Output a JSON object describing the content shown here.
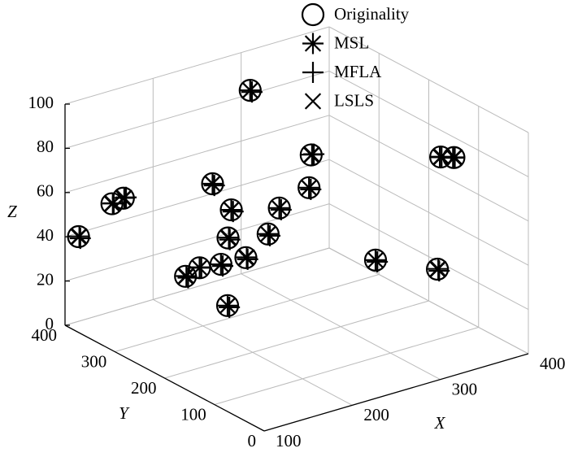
{
  "chart_data": {
    "type": "scatter3d",
    "xlabel": "X",
    "ylabel": "Y",
    "zlabel": "Z",
    "xlim": [
      100,
      400
    ],
    "ylim": [
      0,
      400
    ],
    "zlim": [
      0,
      100
    ],
    "xticks": [
      100,
      200,
      300,
      400
    ],
    "yticks": [
      0,
      100,
      200,
      300,
      400
    ],
    "zticks": [
      0,
      20,
      40,
      60,
      80,
      100
    ],
    "grid": true,
    "legend": "top",
    "series": [
      {
        "name": "Originality",
        "marker": "circle",
        "color": "#000000",
        "x": [
          282,
          323,
          357,
          372,
          264,
          211,
          125,
          138,
          204,
          202,
          104,
          172,
          161,
          152,
          168,
          164,
          164,
          283,
          325,
          115
        ],
        "y": [
          350,
          300,
          100,
          100,
          200,
          300,
          350,
          350,
          250,
          150,
          380,
          200,
          100,
          250,
          250,
          200,
          150,
          100,
          50,
          100
        ],
        "z": [
          91,
          63,
          82,
          80,
          67,
          63,
          58,
          59,
          58,
          71,
          42,
          55,
          70,
          34,
          36,
          44,
          53,
          44,
          41,
          43
        ]
      },
      {
        "name": "MSL",
        "marker": "asterisk",
        "color": "#000000",
        "x": [
          282,
          324,
          358,
          373,
          264,
          211,
          126,
          139,
          204,
          202,
          105,
          173,
          161,
          153,
          168,
          164,
          165,
          283,
          326,
          115
        ],
        "y": [
          350,
          300,
          100,
          100,
          200,
          300,
          350,
          350,
          250,
          150,
          380,
          200,
          100,
          250,
          250,
          200,
          150,
          100,
          50,
          100
        ],
        "z": [
          91,
          63,
          82,
          80,
          67,
          63,
          58,
          59,
          58,
          71,
          42,
          55,
          70,
          34,
          36,
          44,
          53,
          44,
          41,
          43
        ]
      },
      {
        "name": "MFLA",
        "marker": "plus",
        "color": "#000000",
        "x": [
          284,
          326,
          356,
          371,
          266,
          213,
          127,
          141,
          206,
          204,
          106,
          174,
          163,
          155,
          170,
          166,
          166,
          285,
          327,
          117
        ],
        "y": [
          350,
          300,
          100,
          100,
          200,
          300,
          350,
          350,
          250,
          150,
          380,
          200,
          100,
          250,
          250,
          200,
          150,
          100,
          50,
          100
        ],
        "z": [
          90,
          63,
          82,
          80,
          66,
          62,
          58,
          59,
          57,
          70,
          41,
          54,
          69,
          33,
          36,
          43,
          52,
          43,
          40,
          42
        ]
      },
      {
        "name": "LSLS",
        "marker": "x",
        "color": "#000000",
        "x": [
          282,
          323,
          357,
          372,
          264,
          211,
          125,
          138,
          204,
          202,
          104,
          172,
          161,
          152,
          168,
          164,
          164,
          283,
          325,
          115
        ],
        "y": [
          350,
          300,
          100,
          100,
          200,
          300,
          350,
          350,
          250,
          150,
          380,
          200,
          100,
          250,
          250,
          200,
          150,
          100,
          50,
          100
        ],
        "z": [
          91,
          63,
          82,
          80,
          67,
          63,
          58,
          59,
          58,
          71,
          42,
          55,
          70,
          34,
          36,
          44,
          53,
          44,
          41,
          43
        ]
      }
    ]
  }
}
